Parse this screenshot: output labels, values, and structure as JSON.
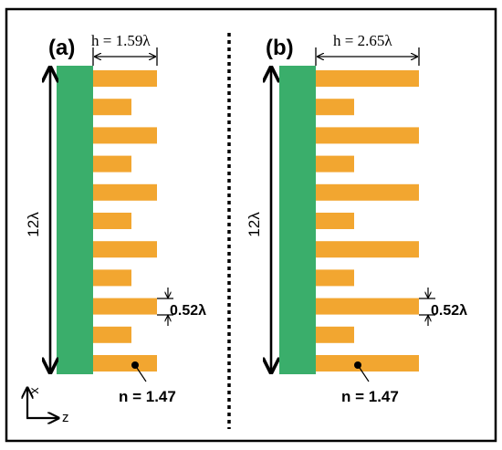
{
  "colors": {
    "substrate": "#3aae6b",
    "fin": "#f2a630",
    "frame": "#000000",
    "background": "#ffffff"
  },
  "panels": [
    {
      "label": "(a)",
      "h_label": "h = 1.59λ",
      "height_label": "12λ",
      "period_label": "0.52λ",
      "index_label": "n = 1.47",
      "h_value": 1.59,
      "fin_pattern": [
        "long",
        "short",
        "long",
        "short",
        "long",
        "short",
        "long",
        "short",
        "long",
        "short",
        "long"
      ]
    },
    {
      "label": "(b)",
      "h_label": "h = 2.65λ",
      "height_label": "12λ",
      "period_label": "0.52λ",
      "index_label": "n = 1.47",
      "h_value": 2.65,
      "fin_pattern": [
        "long",
        "short",
        "long",
        "short",
        "long",
        "short",
        "long",
        "short",
        "long",
        "short",
        "long"
      ]
    }
  ],
  "axes": {
    "x_label": "x",
    "z_label": "z"
  }
}
